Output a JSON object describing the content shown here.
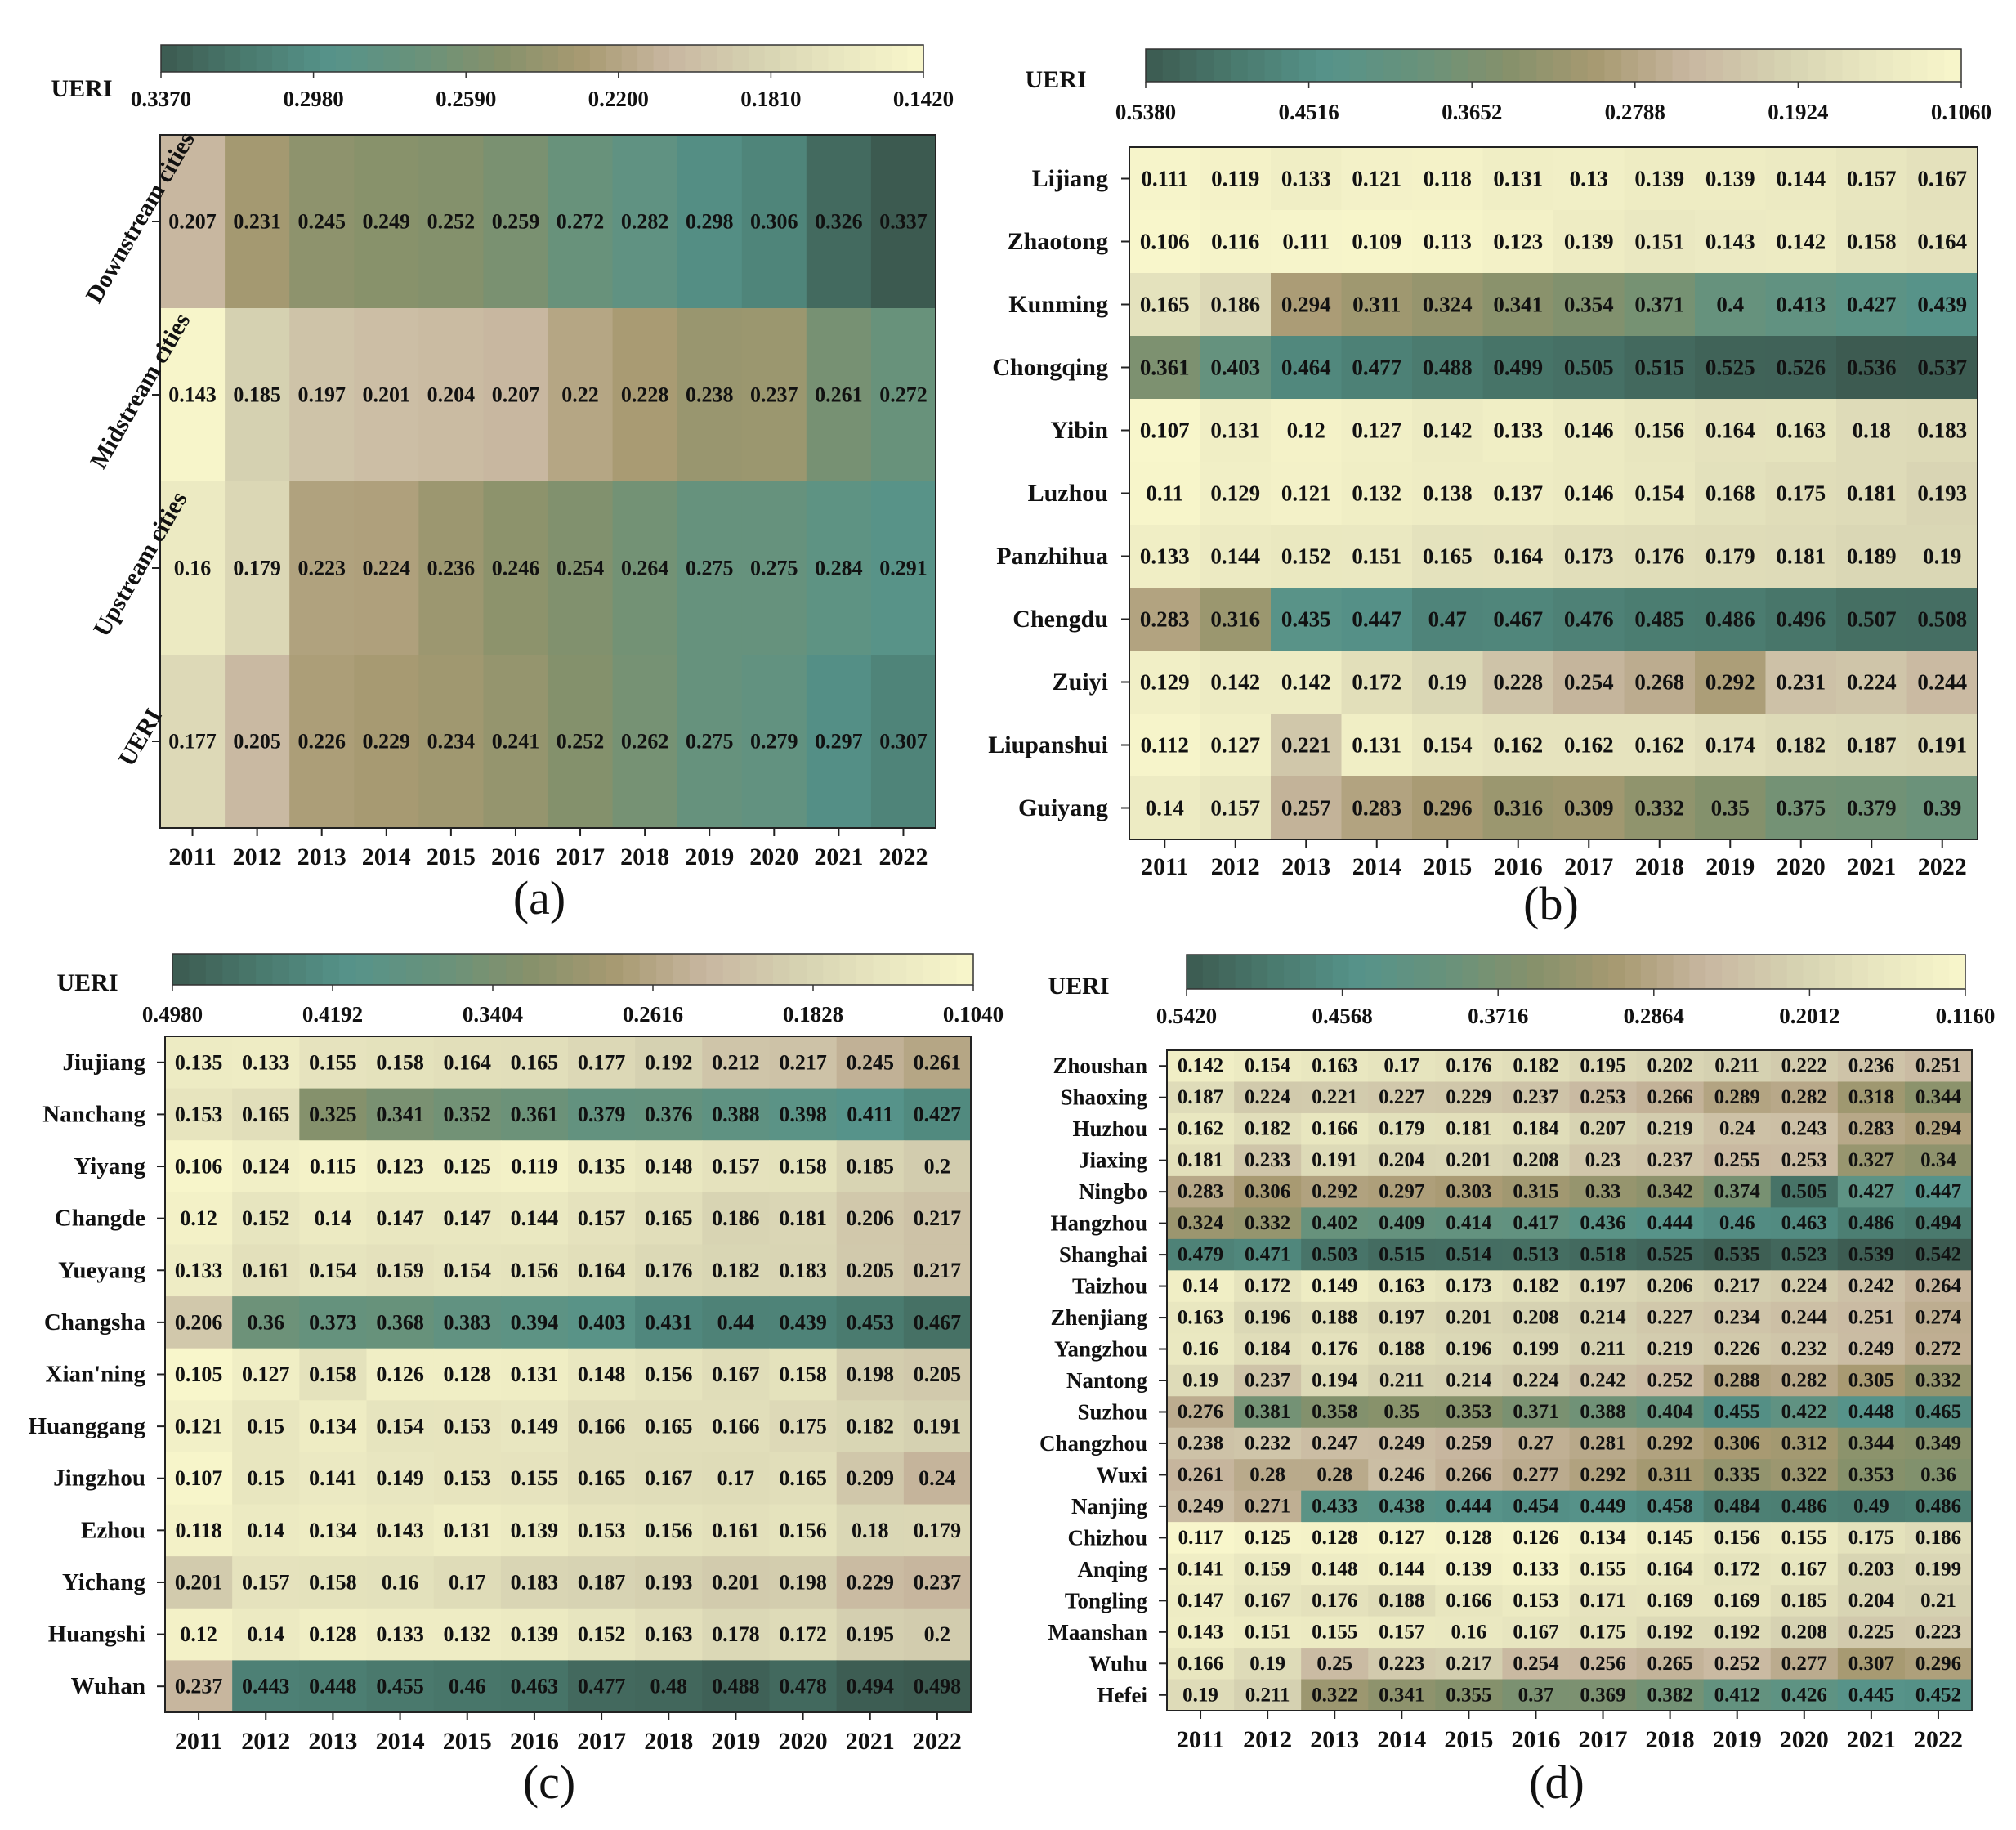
{
  "chart_data": [
    {
      "type": "heatmap",
      "panel_label": "(a)",
      "colorbar_label": "UERI",
      "colorbar_ticks": [
        "0.3370",
        "0.2980",
        "0.2590",
        "0.2200",
        "0.1810",
        "0.1420"
      ],
      "vmin": 0.142,
      "vmax": 0.337,
      "x": [
        "2011",
        "2012",
        "2013",
        "2014",
        "2015",
        "2016",
        "2017",
        "2018",
        "2019",
        "2020",
        "2021",
        "2022"
      ],
      "rows": [
        "Downstream cities",
        "Midstream cities",
        "Upstream cities",
        "UERI"
      ],
      "values": [
        [
          0.207,
          0.231,
          0.245,
          0.249,
          0.252,
          0.259,
          0.272,
          0.282,
          0.298,
          0.306,
          0.326,
          0.337
        ],
        [
          0.143,
          0.185,
          0.197,
          0.201,
          0.204,
          0.207,
          0.22,
          0.228,
          0.238,
          0.237,
          0.261,
          0.272
        ],
        [
          0.16,
          0.179,
          0.223,
          0.224,
          0.236,
          0.246,
          0.254,
          0.264,
          0.275,
          0.275,
          0.284,
          0.291
        ],
        [
          0.177,
          0.205,
          0.226,
          0.229,
          0.234,
          0.241,
          0.252,
          0.262,
          0.275,
          0.279,
          0.297,
          0.307
        ]
      ]
    },
    {
      "type": "heatmap",
      "panel_label": "(b)",
      "colorbar_label": "UERI",
      "colorbar_ticks": [
        "0.5380",
        "0.4516",
        "0.3652",
        "0.2788",
        "0.1924",
        "0.1060"
      ],
      "vmin": 0.106,
      "vmax": 0.538,
      "x": [
        "2011",
        "2012",
        "2013",
        "2014",
        "2015",
        "2016",
        "2017",
        "2018",
        "2019",
        "2020",
        "2021",
        "2022"
      ],
      "rows": [
        "Lijiang",
        "Zhaotong",
        "Kunming",
        "Chongqing",
        "Yibin",
        "Luzhou",
        "Panzhihua",
        "Chengdu",
        "Zuiyi",
        "Liupanshui",
        "Guiyang"
      ],
      "values": [
        [
          0.111,
          0.119,
          0.133,
          0.121,
          0.118,
          0.131,
          0.13,
          0.139,
          0.139,
          0.144,
          0.157,
          0.167
        ],
        [
          0.106,
          0.116,
          0.111,
          0.109,
          0.113,
          0.123,
          0.139,
          0.151,
          0.143,
          0.142,
          0.158,
          0.164
        ],
        [
          0.165,
          0.186,
          0.294,
          0.311,
          0.324,
          0.341,
          0.354,
          0.371,
          0.4,
          0.413,
          0.427,
          0.439
        ],
        [
          0.361,
          0.403,
          0.464,
          0.477,
          0.488,
          0.499,
          0.505,
          0.515,
          0.525,
          0.526,
          0.536,
          0.537
        ],
        [
          0.107,
          0.131,
          0.12,
          0.127,
          0.142,
          0.133,
          0.146,
          0.156,
          0.164,
          0.163,
          0.18,
          0.183
        ],
        [
          0.11,
          0.129,
          0.121,
          0.132,
          0.138,
          0.137,
          0.146,
          0.154,
          0.168,
          0.175,
          0.181,
          0.193
        ],
        [
          0.133,
          0.144,
          0.152,
          0.151,
          0.165,
          0.164,
          0.173,
          0.176,
          0.179,
          0.181,
          0.189,
          0.19
        ],
        [
          0.283,
          0.316,
          0.435,
          0.447,
          0.47,
          0.467,
          0.476,
          0.485,
          0.486,
          0.496,
          0.507,
          0.508
        ],
        [
          0.129,
          0.142,
          0.142,
          0.172,
          0.19,
          0.228,
          0.254,
          0.268,
          0.292,
          0.231,
          0.224,
          0.244
        ],
        [
          0.112,
          0.127,
          0.221,
          0.131,
          0.154,
          0.162,
          0.162,
          0.162,
          0.174,
          0.182,
          0.187,
          0.191
        ],
        [
          0.14,
          0.157,
          0.257,
          0.283,
          0.296,
          0.316,
          0.309,
          0.332,
          0.35,
          0.375,
          0.379,
          0.39
        ]
      ]
    },
    {
      "type": "heatmap",
      "panel_label": "(c)",
      "colorbar_label": "UERI",
      "colorbar_ticks": [
        "0.4980",
        "0.4192",
        "0.3404",
        "0.2616",
        "0.1828",
        "0.1040"
      ],
      "vmin": 0.104,
      "vmax": 0.498,
      "x": [
        "2011",
        "2012",
        "2013",
        "2014",
        "2015",
        "2016",
        "2017",
        "2018",
        "2019",
        "2020",
        "2021",
        "2022"
      ],
      "rows": [
        "Jiujiang",
        "Nanchang",
        "Yiyang",
        "Changde",
        "Yueyang",
        "Changsha",
        "Xian'ning",
        "Huanggang",
        "Jingzhou",
        "Ezhou",
        "Yichang",
        "Huangshi",
        "Wuhan"
      ],
      "values": [
        [
          0.135,
          0.133,
          0.155,
          0.158,
          0.164,
          0.165,
          0.177,
          0.192,
          0.212,
          0.217,
          0.245,
          0.261
        ],
        [
          0.153,
          0.165,
          0.325,
          0.341,
          0.352,
          0.361,
          0.379,
          0.376,
          0.388,
          0.398,
          0.411,
          0.427
        ],
        [
          0.106,
          0.124,
          0.115,
          0.123,
          0.125,
          0.119,
          0.135,
          0.148,
          0.157,
          0.158,
          0.185,
          0.2
        ],
        [
          0.12,
          0.152,
          0.14,
          0.147,
          0.147,
          0.144,
          0.157,
          0.165,
          0.186,
          0.181,
          0.206,
          0.217
        ],
        [
          0.133,
          0.161,
          0.154,
          0.159,
          0.154,
          0.156,
          0.164,
          0.176,
          0.182,
          0.183,
          0.205,
          0.217
        ],
        [
          0.206,
          0.36,
          0.373,
          0.368,
          0.383,
          0.394,
          0.403,
          0.431,
          0.44,
          0.439,
          0.453,
          0.467
        ],
        [
          0.105,
          0.127,
          0.158,
          0.126,
          0.128,
          0.131,
          0.148,
          0.156,
          0.167,
          0.158,
          0.198,
          0.205
        ],
        [
          0.121,
          0.15,
          0.134,
          0.154,
          0.153,
          0.149,
          0.166,
          0.165,
          0.166,
          0.175,
          0.182,
          0.191
        ],
        [
          0.107,
          0.15,
          0.141,
          0.149,
          0.153,
          0.155,
          0.165,
          0.167,
          0.17,
          0.165,
          0.209,
          0.24
        ],
        [
          0.118,
          0.14,
          0.134,
          0.143,
          0.131,
          0.139,
          0.153,
          0.156,
          0.161,
          0.156,
          0.18,
          0.179
        ],
        [
          0.201,
          0.157,
          0.158,
          0.16,
          0.17,
          0.183,
          0.187,
          0.193,
          0.201,
          0.198,
          0.229,
          0.237
        ],
        [
          0.12,
          0.14,
          0.128,
          0.133,
          0.132,
          0.139,
          0.152,
          0.163,
          0.178,
          0.172,
          0.195,
          0.2
        ],
        [
          0.237,
          0.443,
          0.448,
          0.455,
          0.46,
          0.463,
          0.477,
          0.48,
          0.488,
          0.478,
          0.494,
          0.498
        ]
      ]
    },
    {
      "type": "heatmap",
      "panel_label": "(d)",
      "colorbar_label": "UERI",
      "colorbar_ticks": [
        "0.5420",
        "0.4568",
        "0.3716",
        "0.2864",
        "0.2012",
        "0.1160"
      ],
      "vmin": 0.116,
      "vmax": 0.542,
      "x": [
        "2011",
        "2012",
        "2013",
        "2014",
        "2015",
        "2016",
        "2017",
        "2018",
        "2019",
        "2020",
        "2021",
        "2022"
      ],
      "rows": [
        "Zhoushan",
        "Shaoxing",
        "Huzhou",
        "Jiaxing",
        "Ningbo",
        "Hangzhou",
        "Shanghai",
        "Taizhou",
        "Zhenjiang",
        "Yangzhou",
        "Nantong",
        "Suzhou",
        "Changzhou",
        "Wuxi",
        "Nanjing",
        "Chizhou",
        "Anqing",
        "Tongling",
        "Maanshan",
        "Wuhu",
        "Hefei"
      ],
      "values": [
        [
          0.142,
          0.154,
          0.163,
          0.17,
          0.176,
          0.182,
          0.195,
          0.202,
          0.211,
          0.222,
          0.236,
          0.251
        ],
        [
          0.187,
          0.224,
          0.221,
          0.227,
          0.229,
          0.237,
          0.253,
          0.266,
          0.289,
          0.282,
          0.318,
          0.344
        ],
        [
          0.162,
          0.182,
          0.166,
          0.179,
          0.181,
          0.184,
          0.207,
          0.219,
          0.24,
          0.243,
          0.283,
          0.294
        ],
        [
          0.181,
          0.233,
          0.191,
          0.204,
          0.201,
          0.208,
          0.23,
          0.237,
          0.255,
          0.253,
          0.327,
          0.34
        ],
        [
          0.283,
          0.306,
          0.292,
          0.297,
          0.303,
          0.315,
          0.33,
          0.342,
          0.374,
          0.505,
          0.427,
          0.447
        ],
        [
          0.324,
          0.332,
          0.402,
          0.409,
          0.414,
          0.417,
          0.436,
          0.444,
          0.46,
          0.463,
          0.486,
          0.494
        ],
        [
          0.479,
          0.471,
          0.503,
          0.515,
          0.514,
          0.513,
          0.518,
          0.525,
          0.535,
          0.523,
          0.539,
          0.542
        ],
        [
          0.14,
          0.172,
          0.149,
          0.163,
          0.173,
          0.182,
          0.197,
          0.206,
          0.217,
          0.224,
          0.242,
          0.264
        ],
        [
          0.163,
          0.196,
          0.188,
          0.197,
          0.201,
          0.208,
          0.214,
          0.227,
          0.234,
          0.244,
          0.251,
          0.274
        ],
        [
          0.16,
          0.184,
          0.176,
          0.188,
          0.196,
          0.199,
          0.211,
          0.219,
          0.226,
          0.232,
          0.249,
          0.272
        ],
        [
          0.19,
          0.237,
          0.194,
          0.211,
          0.214,
          0.224,
          0.242,
          0.252,
          0.288,
          0.282,
          0.305,
          0.332
        ],
        [
          0.276,
          0.381,
          0.358,
          0.35,
          0.353,
          0.371,
          0.388,
          0.404,
          0.455,
          0.422,
          0.448,
          0.465
        ],
        [
          0.238,
          0.232,
          0.247,
          0.249,
          0.259,
          0.27,
          0.281,
          0.292,
          0.306,
          0.312,
          0.344,
          0.349
        ],
        [
          0.261,
          0.28,
          0.28,
          0.246,
          0.266,
          0.277,
          0.292,
          0.311,
          0.335,
          0.322,
          0.353,
          0.36
        ],
        [
          0.249,
          0.271,
          0.433,
          0.438,
          0.444,
          0.454,
          0.449,
          0.458,
          0.484,
          0.486,
          0.49,
          0.486
        ],
        [
          0.117,
          0.125,
          0.128,
          0.127,
          0.128,
          0.126,
          0.134,
          0.145,
          0.156,
          0.155,
          0.175,
          0.186
        ],
        [
          0.141,
          0.159,
          0.148,
          0.144,
          0.139,
          0.133,
          0.155,
          0.164,
          0.172,
          0.167,
          0.203,
          0.199
        ],
        [
          0.147,
          0.167,
          0.176,
          0.188,
          0.166,
          0.153,
          0.171,
          0.169,
          0.169,
          0.185,
          0.204,
          0.21
        ],
        [
          0.143,
          0.151,
          0.155,
          0.157,
          0.16,
          0.167,
          0.175,
          0.192,
          0.192,
          0.208,
          0.225,
          0.223
        ],
        [
          0.166,
          0.19,
          0.25,
          0.223,
          0.217,
          0.254,
          0.256,
          0.265,
          0.252,
          0.277,
          0.307,
          0.296
        ],
        [
          0.19,
          0.211,
          0.322,
          0.341,
          0.355,
          0.37,
          0.369,
          0.382,
          0.412,
          0.426,
          0.445,
          0.452
        ]
      ]
    }
  ],
  "colormap": [
    "#f8f6cb",
    "#e9e7c0",
    "#d5d1b1",
    "#c8b7a0",
    "#a89a72",
    "#86916b",
    "#68927b",
    "#56938a",
    "#4a7a6e",
    "#3c5a50"
  ]
}
